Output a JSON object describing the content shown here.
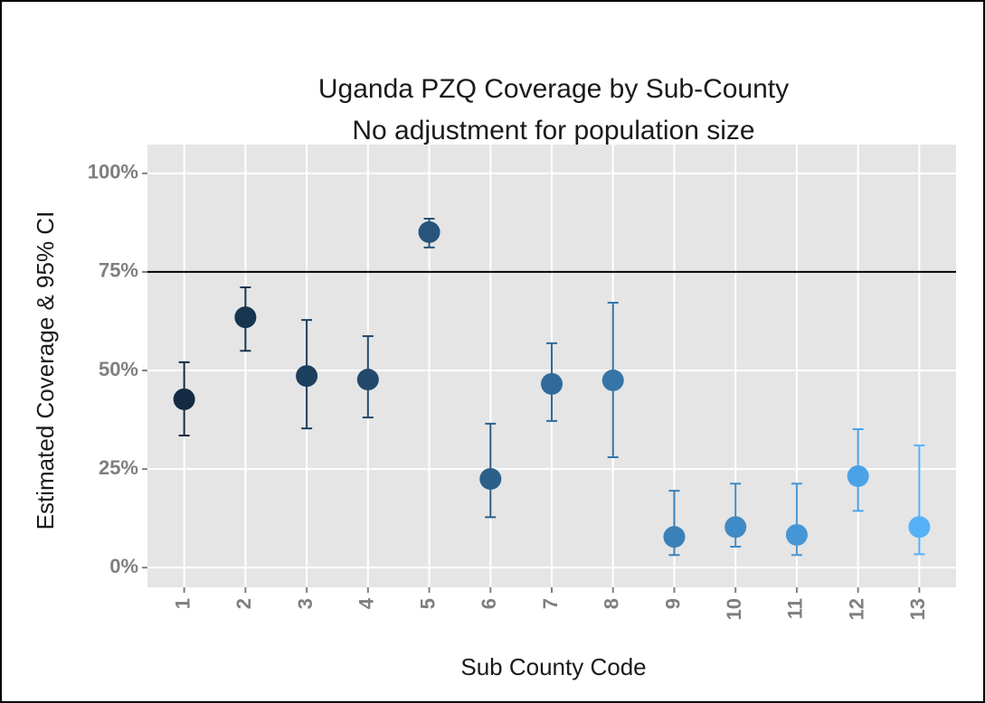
{
  "chart_data": {
    "type": "pointrange",
    "title": "Uganda PZQ Coverage by Sub-County",
    "subtitle": "No adjustment for population size",
    "x_label": "Sub County Code",
    "y_label": "Estimated Coverage & 95% CI",
    "categories": [
      "1",
      "2",
      "3",
      "4",
      "5",
      "6",
      "7",
      "8",
      "9",
      "10",
      "11",
      "12",
      "13"
    ],
    "values": [
      42.7,
      63.5,
      48.6,
      47.7,
      85.1,
      22.5,
      46.6,
      47.5,
      7.8,
      10.3,
      8.3,
      23.2,
      10.3
    ],
    "lower": [
      33.5,
      55.0,
      35.3,
      38.1,
      81.2,
      12.8,
      37.2,
      28.0,
      3.2,
      5.3,
      3.2,
      14.4,
      3.4
    ],
    "upper": [
      52.1,
      71.1,
      62.8,
      58.7,
      88.5,
      36.5,
      56.9,
      67.2,
      19.5,
      21.3,
      21.3,
      35.1,
      31.0
    ],
    "colors": [
      "#132b43",
      "#183550",
      "#1d3f5e",
      "#22496c",
      "#27547a",
      "#2c5f89",
      "#316a98",
      "#3675a7",
      "#3b80b6",
      "#408bc5",
      "#4696d5",
      "#4ba2e5",
      "#56b1f7"
    ],
    "ylim": [
      -5,
      107.3
    ],
    "yticks": [
      {
        "value": 0,
        "label": "0%"
      },
      {
        "value": 25,
        "label": "25%"
      },
      {
        "value": 50,
        "label": "50%"
      },
      {
        "value": 75,
        "label": "75%"
      },
      {
        "value": 100,
        "label": "100%"
      }
    ],
    "reference_line": 75,
    "grid": true
  }
}
